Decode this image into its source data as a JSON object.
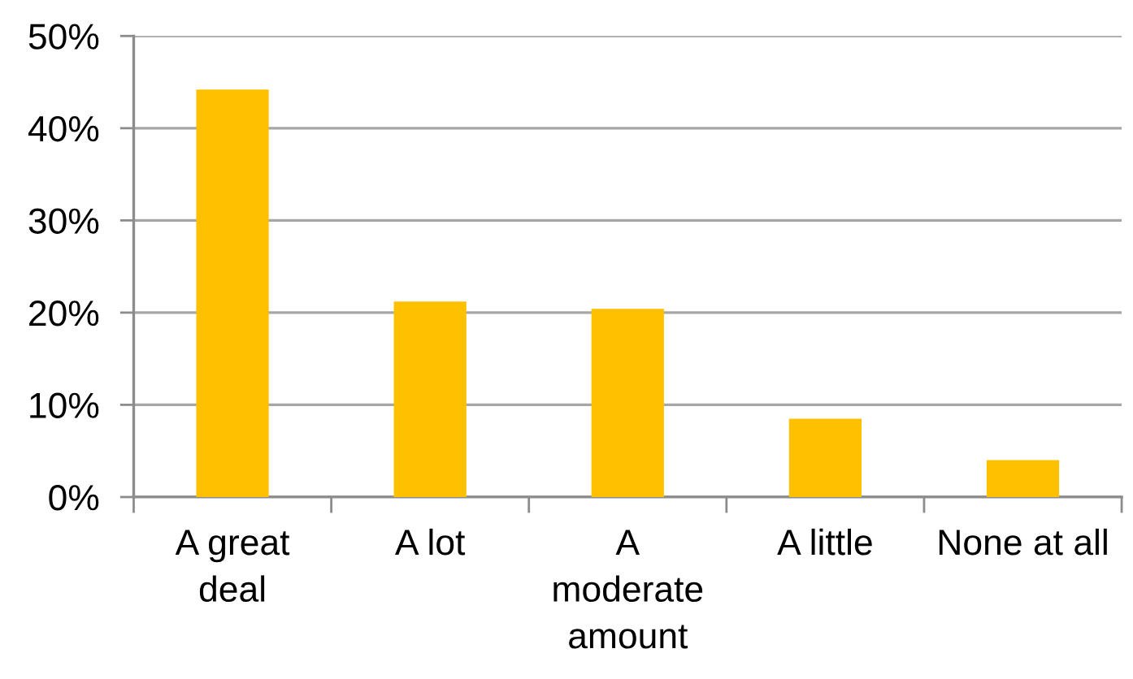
{
  "chart_data": {
    "type": "bar",
    "categories": [
      "A great\ndeal",
      "A lot",
      "A\nmoderate\namount",
      "A little",
      "None at all"
    ],
    "values": [
      44.2,
      21.2,
      20.4,
      8.5,
      4.0
    ],
    "color": "#ffc000",
    "ylim": [
      0,
      50
    ],
    "yticks": [
      {
        "value": 0,
        "label": "0%"
      },
      {
        "value": 10,
        "label": "10%"
      },
      {
        "value": 20,
        "label": "20%"
      },
      {
        "value": 30,
        "label": "30%"
      },
      {
        "value": 40,
        "label": "40%"
      },
      {
        "value": 50,
        "label": "50%"
      }
    ],
    "grid": "y"
  }
}
